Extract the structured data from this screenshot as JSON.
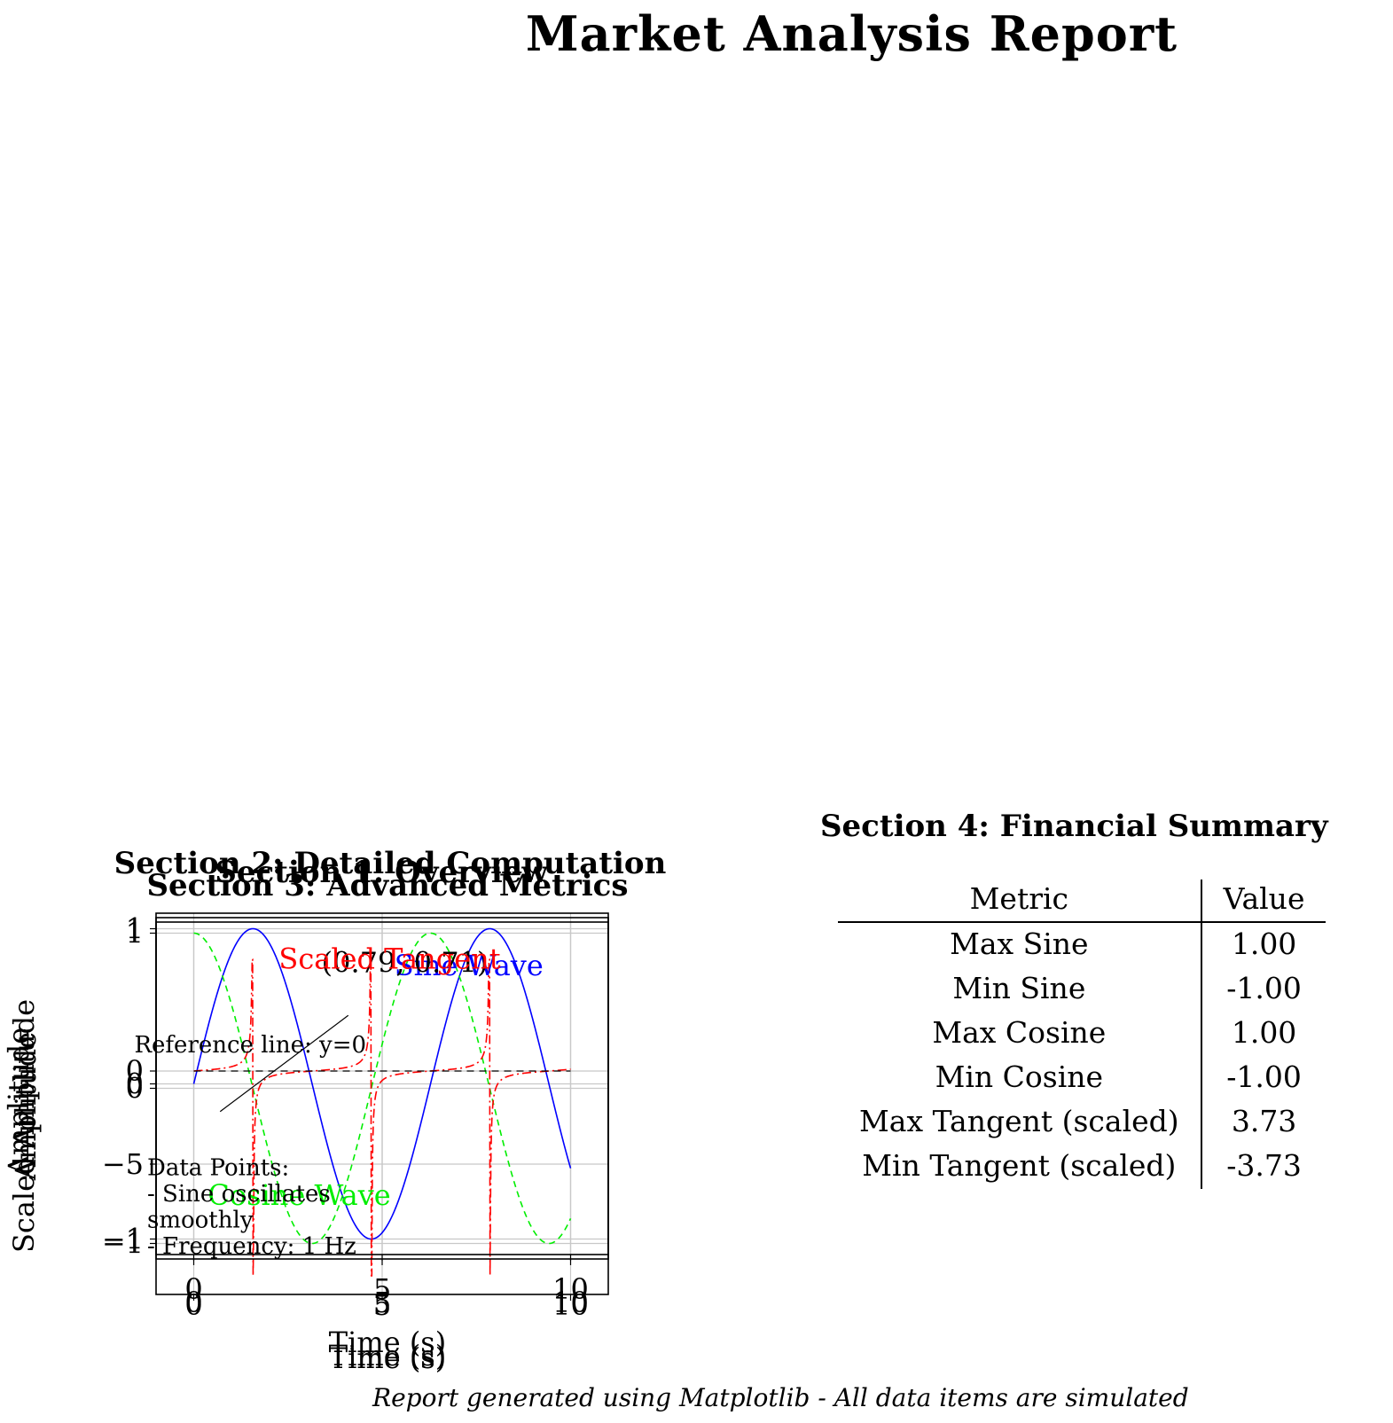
{
  "report": {
    "title": "Market Analysis Report",
    "footer": "Report generated using Matplotlib - All data items are simulated"
  },
  "chart_data": [
    {
      "type": "line",
      "title": "Section 1: Overview",
      "xlabel": "Time (s)",
      "ylabel": "Amplitude",
      "xlim": [
        -1,
        11
      ],
      "ylim": [
        -1.1,
        1.1
      ],
      "xticks": [
        "0",
        "5",
        "10"
      ],
      "yticks": [
        "1",
        "0",
        "−1"
      ],
      "grid": true,
      "series": [
        {
          "name": "Sine Wave",
          "color": "#0000ff",
          "function": "sin",
          "x_range": [
            0,
            10
          ]
        }
      ],
      "annotations": [
        {
          "text": "Sine Wave",
          "color": "#0000ff",
          "x": 7.3,
          "y": 0.7
        }
      ]
    },
    {
      "type": "line",
      "title": "Section 2: Detailed Computation",
      "xlabel": "Time (s)",
      "ylabel": "Amplitude",
      "xlim": [
        -1,
        11
      ],
      "ylim": [
        -1.1,
        1.1
      ],
      "xticks": [
        "0",
        "5",
        "10"
      ],
      "yticks": [
        "1",
        "0",
        "−1"
      ],
      "grid": true,
      "series": [
        {
          "name": "Cosine Wave",
          "color": "#00ee00",
          "function": "cos",
          "x_range": [
            0,
            10
          ]
        }
      ],
      "annotations": [
        {
          "text": "Cosine Wave",
          "color": "#00ee00",
          "x": 2.8,
          "y": -0.75
        },
        {
          "text": "(0.79, 0.71)",
          "color": "#000000",
          "x": 5.6,
          "y": 0.75
        }
      ]
    },
    {
      "type": "line",
      "title": "Section 3: Advanced Metrics",
      "xlabel": "Time (s)",
      "ylabel": "Scaled Amplitude",
      "xlim": [
        -1,
        11
      ],
      "ylim": [
        -12,
        8
      ],
      "xticks": [
        "0",
        "5",
        "10"
      ],
      "yticks": [
        "0",
        "−5"
      ],
      "grid": true,
      "series": [
        {
          "name": "Scaled Tangent",
          "color": "#ff0000",
          "function": "tan_scaled",
          "x_range": [
            0,
            10
          ]
        }
      ],
      "annotations": [
        {
          "text": "Scaled Tangent",
          "color": "#ff0000",
          "x": 5.2,
          "y": 5.5
        },
        {
          "text": "Reference line: y=0",
          "color": "#000000",
          "x": 1.5,
          "y": 1.0
        },
        {
          "text": "Data Points:",
          "color": "#000000",
          "x": -1,
          "y": -5.6
        },
        {
          "text": "- Sine oscillates",
          "color": "#000000",
          "x": -1,
          "y": -7.0
        },
        {
          "text": "smoothly",
          "color": "#000000",
          "x": -1,
          "y": -8.4
        },
        {
          "text": "- Frequency: 1 Hz",
          "color": "#000000",
          "x": -1,
          "y": -9.8
        }
      ]
    }
  ],
  "table": {
    "title": "Section 4: Financial Summary",
    "headers": [
      "Metric",
      "Value"
    ],
    "rows": [
      [
        "Max Sine",
        "1.00"
      ],
      [
        "Min Sine",
        "-1.00"
      ],
      [
        "Max Cosine",
        "1.00"
      ],
      [
        "Min Cosine",
        "-1.00"
      ],
      [
        "Max Tangent (scaled)",
        "3.73"
      ],
      [
        "Min Tangent (scaled)",
        "-3.73"
      ]
    ]
  }
}
